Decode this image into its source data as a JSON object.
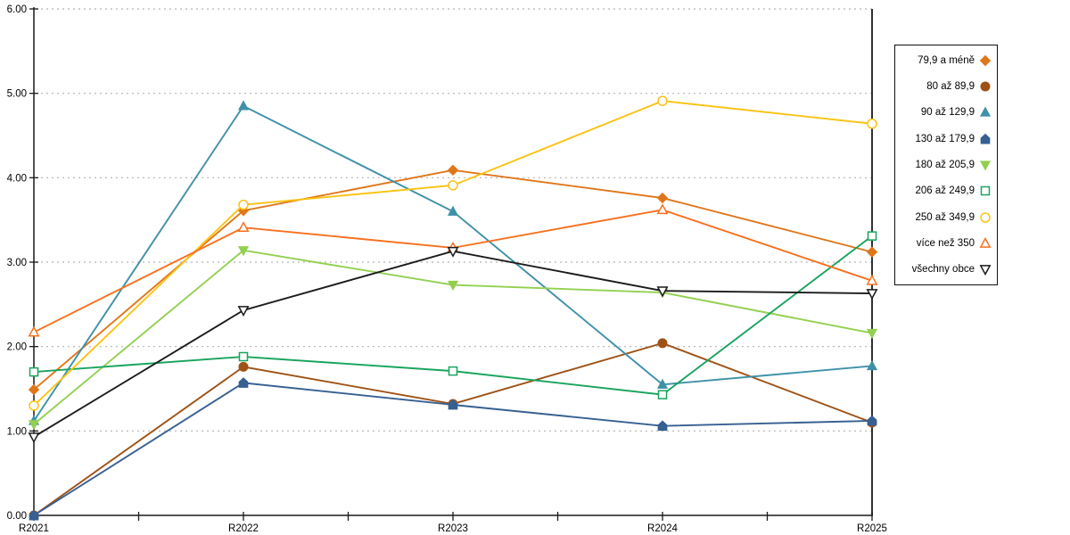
{
  "figure": {
    "background": "#ffffff",
    "axis_color": "#1a1a1a",
    "gridline_color": "#b3b3b3",
    "label_color": "#000000"
  },
  "chart_data": {
    "type": "line",
    "title": "",
    "xlabel": "",
    "ylabel": "",
    "grid": true,
    "legend_position": "right",
    "ylim": [
      0,
      6
    ],
    "y_tick_labels": [
      "0.00",
      "1.00",
      "2.00",
      "3.00",
      "4.00",
      "5.00",
      "6.00"
    ],
    "categories": [
      "R2021",
      "R2022",
      "R2023",
      "R2024",
      "R2025"
    ],
    "series": [
      {
        "name": "79,9 a méně",
        "color": "#E0761A",
        "marker": "diamond",
        "filled": true,
        "values": [
          1.49,
          3.61,
          4.09,
          3.76,
          3.12
        ]
      },
      {
        "name": "80 až 89,9",
        "color": "#9E5216",
        "marker": "circle",
        "filled": true,
        "values": [
          0.0,
          1.76,
          1.32,
          2.04,
          1.1
        ]
      },
      {
        "name": "90 až 129,9",
        "color": "#3E91A8",
        "marker": "triangle-up",
        "filled": true,
        "values": [
          1.12,
          4.85,
          3.6,
          1.55,
          1.77
        ]
      },
      {
        "name": "130 až 179,9",
        "color": "#365F92",
        "marker": "pentagon",
        "filled": true,
        "values": [
          0.0,
          1.57,
          1.31,
          1.06,
          1.12
        ]
      },
      {
        "name": "180 až 205,9",
        "color": "#92D050",
        "marker": "triangle-down",
        "filled": true,
        "values": [
          1.08,
          3.14,
          2.73,
          2.64,
          2.16
        ]
      },
      {
        "name": "206 až 249,9",
        "color": "#18A45C",
        "marker": "square",
        "filled": false,
        "values": [
          1.7,
          1.88,
          1.71,
          1.43,
          3.31
        ]
      },
      {
        "name": "250 až 349,9",
        "color": "#FAC314",
        "marker": "circle",
        "filled": false,
        "values": [
          1.3,
          3.68,
          3.91,
          4.91,
          4.64
        ]
      },
      {
        "name": "více než 350",
        "color": "#F7701E",
        "marker": "triangle-up",
        "filled": false,
        "values": [
          2.17,
          3.41,
          3.17,
          3.62,
          2.78
        ]
      },
      {
        "name": "všechny obce",
        "color": "#1A1A1A",
        "marker": "triangle-down",
        "filled": false,
        "values": [
          0.93,
          2.43,
          3.13,
          2.66,
          2.63
        ]
      }
    ]
  }
}
